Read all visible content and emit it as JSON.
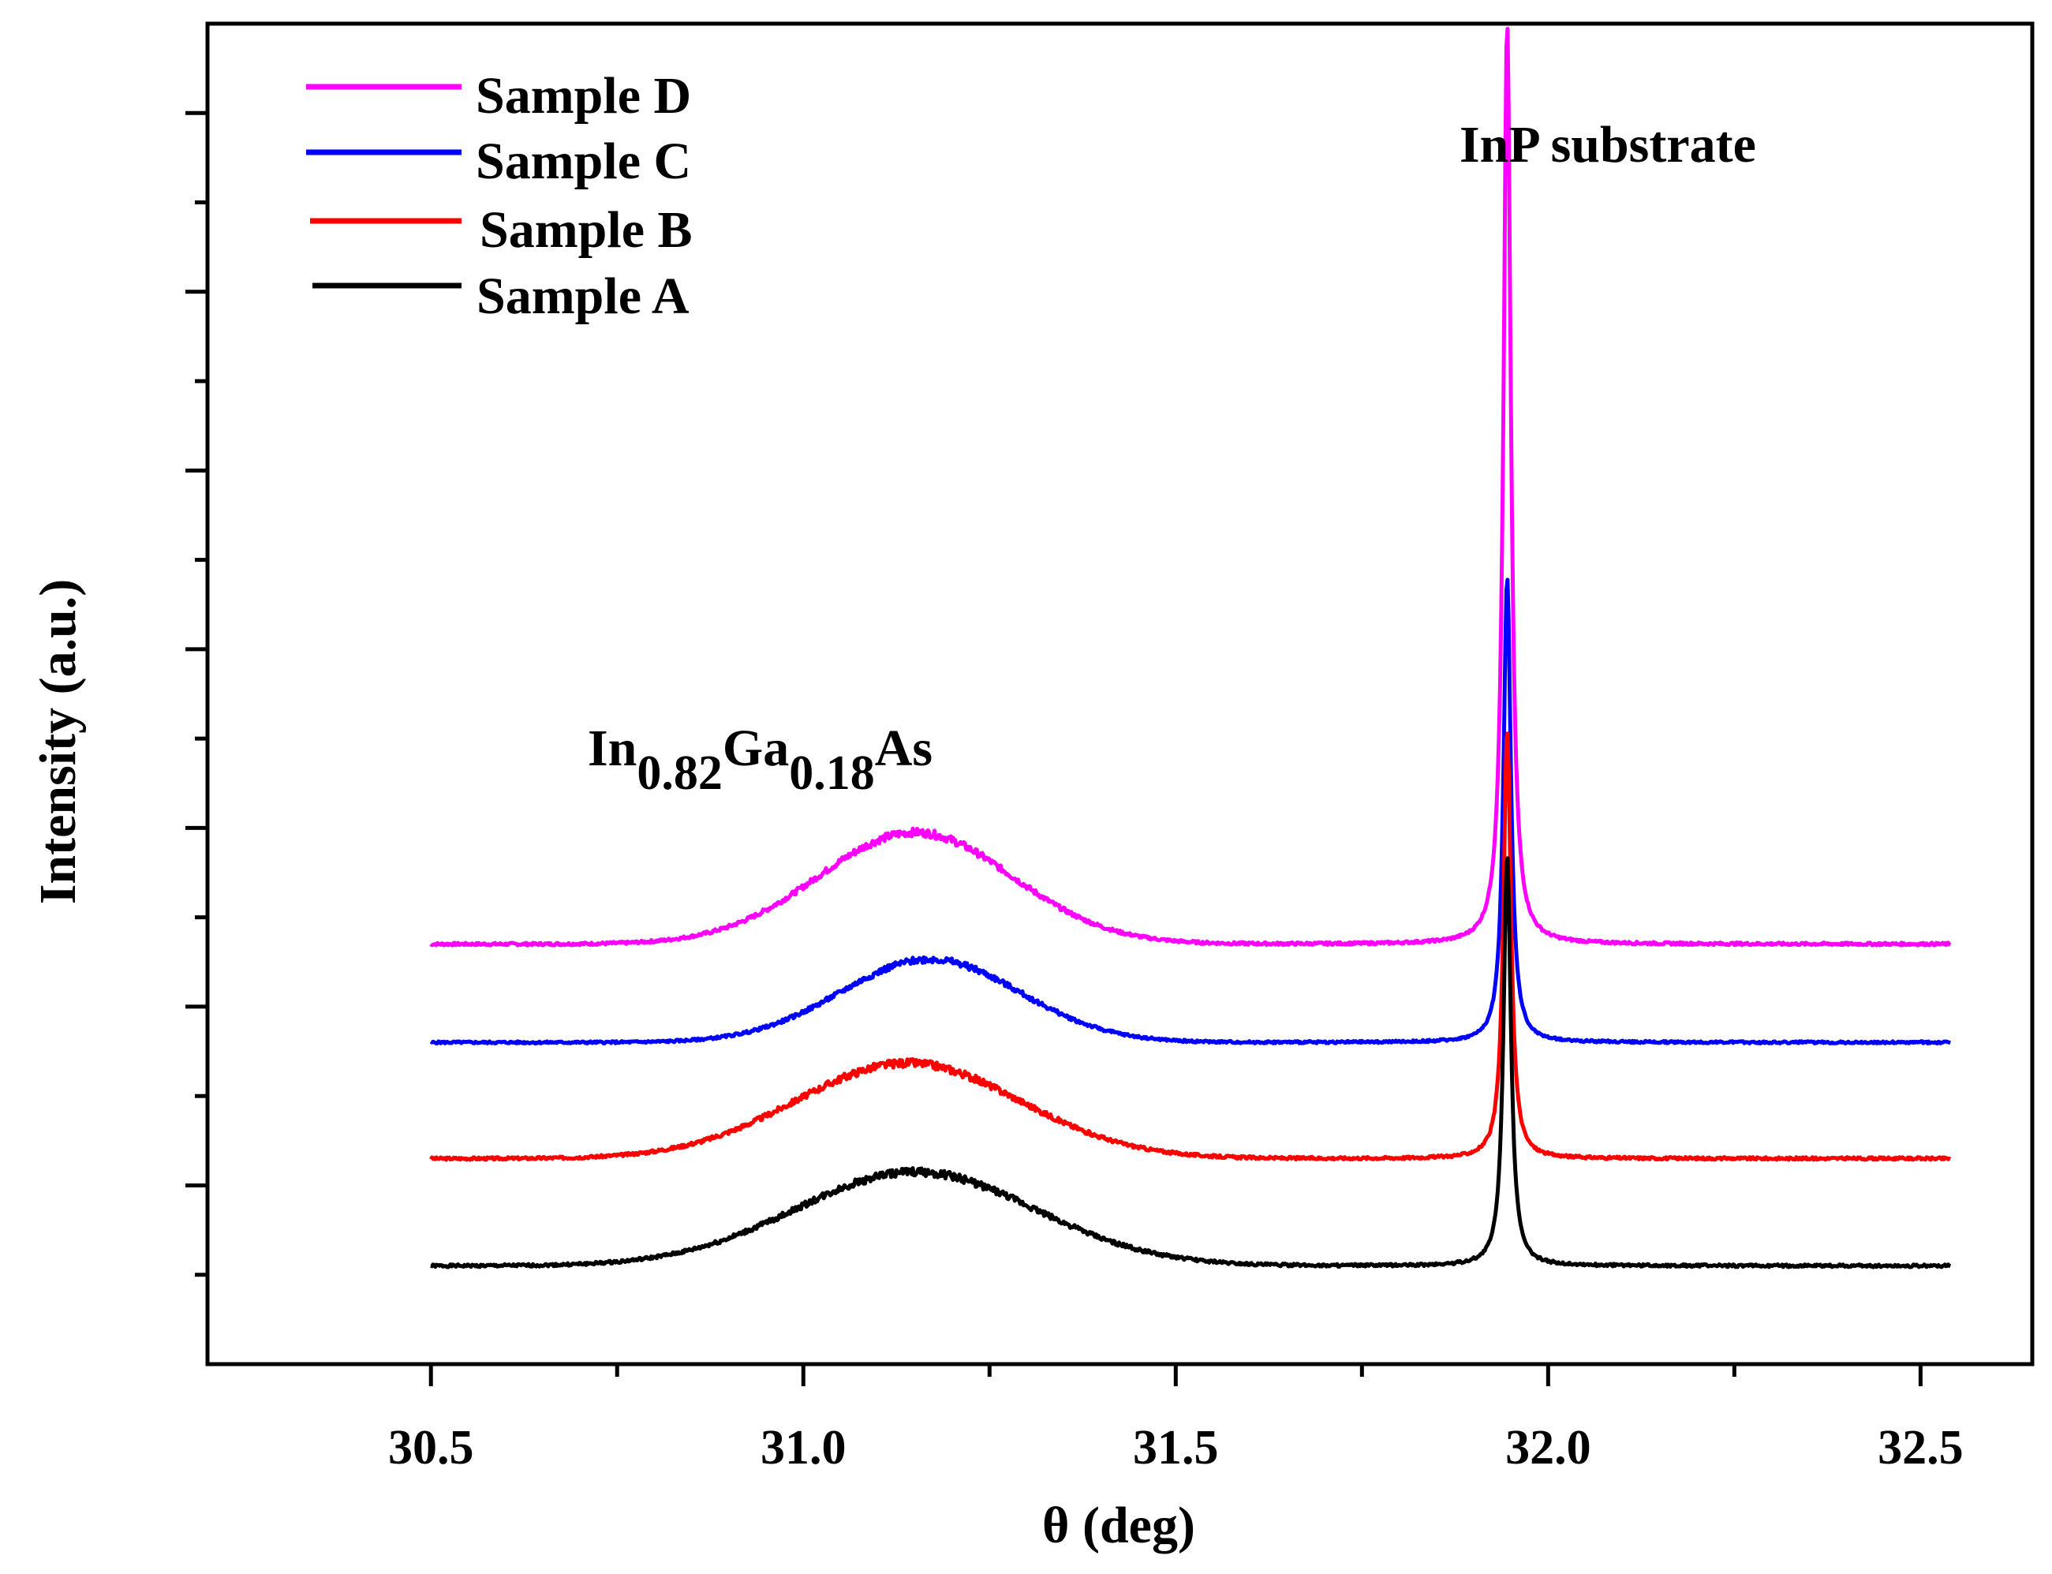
{
  "chart_data": {
    "type": "line",
    "title": "",
    "xlabel": "θ (deg)",
    "ylabel": "Intensity (a.u.)",
    "xlim": [
      30.2,
      32.65
    ],
    "ylim": [
      0,
      15
    ],
    "xticks": [
      30.5,
      31.0,
      31.5,
      32.0,
      32.5
    ],
    "xtick_labels": [
      "30.5",
      "31.0",
      "31.5",
      "32.0",
      "32.5"
    ],
    "yticks_count": 15,
    "grid": false,
    "legend_position": "top-left",
    "annotations": {
      "alloy": {
        "base": "In",
        "sub1": "0.82",
        "mid": "Ga",
        "sub2": "0.18",
        "end": "As",
        "x": 31.15
      },
      "substrate": {
        "text": "InP substrate",
        "x": 31.95
      }
    },
    "series": [
      {
        "name": "Sample D",
        "color": "#ff00ff",
        "offset": 4.7,
        "layer_peak": 31.15,
        "layer_height": 1.25,
        "layer_width": 0.13,
        "sub_peak": 31.945,
        "sub_height": 10.3,
        "noise": 0.03,
        "seed": 7
      },
      {
        "name": "Sample C",
        "color": "#0000ff",
        "offset": 3.6,
        "layer_peak": 31.17,
        "layer_height": 0.93,
        "layer_width": 0.12,
        "sub_peak": 31.945,
        "sub_height": 5.2,
        "noise": 0.025,
        "seed": 5
      },
      {
        "name": "Sample B",
        "color": "#ff0000",
        "offset": 2.3,
        "layer_peak": 31.14,
        "layer_height": 1.07,
        "layer_width": 0.15,
        "sub_peak": 31.945,
        "sub_height": 4.8,
        "noise": 0.03,
        "seed": 3
      },
      {
        "name": "Sample A",
        "color": "#000000",
        "offset": 1.1,
        "layer_peak": 31.15,
        "layer_height": 1.05,
        "layer_width": 0.16,
        "sub_peak": 31.945,
        "sub_height": 4.6,
        "noise": 0.03,
        "seed": 1
      }
    ],
    "x_range": [
      30.5,
      32.54
    ]
  }
}
